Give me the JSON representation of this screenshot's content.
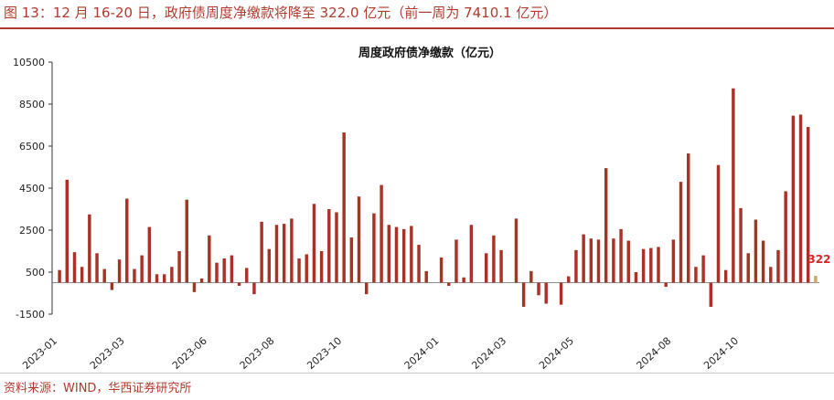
{
  "figure": {
    "title": "图 13：12 月 16-20 日，政府债周度净缴款将降至 322.0 亿元（前一周为 7410.1 亿元）",
    "source": "资料来源：WIND，华西证券研究所"
  },
  "colors": {
    "bar": "#a93226",
    "last_bar": "#c9a86a",
    "last_label": "#d62728",
    "title": "#b03a2e",
    "axis": "#333333"
  },
  "chart_data": {
    "type": "bar",
    "title": "周度政府债净缴款（亿元）",
    "xlabel": "",
    "ylabel": "",
    "ylim": [
      -1500,
      10500
    ],
    "yticks": [
      -1500,
      500,
      2500,
      4500,
      6500,
      8500,
      10500
    ],
    "xtick_labels": [
      "2023-01",
      "2023-03",
      "2023-06",
      "2023-08",
      "2023-10",
      "2024-01",
      "2024-03",
      "2024-05",
      "2024-08",
      "2024-10"
    ],
    "xtick_week_index": [
      0,
      9,
      20,
      29,
      38,
      51,
      60,
      69,
      82,
      91
    ],
    "grid": false,
    "last_value_label": "322",
    "values": [
      600,
      4900,
      1450,
      750,
      3250,
      1400,
      650,
      -350,
      1100,
      4000,
      650,
      1300,
      2650,
      400,
      400,
      750,
      1500,
      3950,
      -450,
      200,
      2250,
      950,
      1150,
      1300,
      -150,
      700,
      -550,
      2900,
      1600,
      2750,
      2800,
      3050,
      1150,
      1350,
      3750,
      1500,
      3500,
      3350,
      7150,
      2150,
      4100,
      -550,
      3300,
      4650,
      2750,
      2650,
      2550,
      2700,
      1800,
      550,
      0,
      1200,
      -150,
      2050,
      250,
      2750,
      0,
      1400,
      2250,
      1550,
      0,
      3050,
      -1150,
      550,
      -600,
      -1000,
      0,
      -1050,
      300,
      1550,
      2300,
      2100,
      2050,
      5450,
      2100,
      2550,
      2000,
      500,
      1600,
      1650,
      1700,
      -200,
      2050,
      4800,
      6150,
      750,
      1300,
      -1150,
      5600,
      600,
      9250,
      3550,
      1400,
      3000,
      2000,
      750,
      1550,
      4350,
      7950,
      8000,
      7410.1,
      322
    ]
  }
}
